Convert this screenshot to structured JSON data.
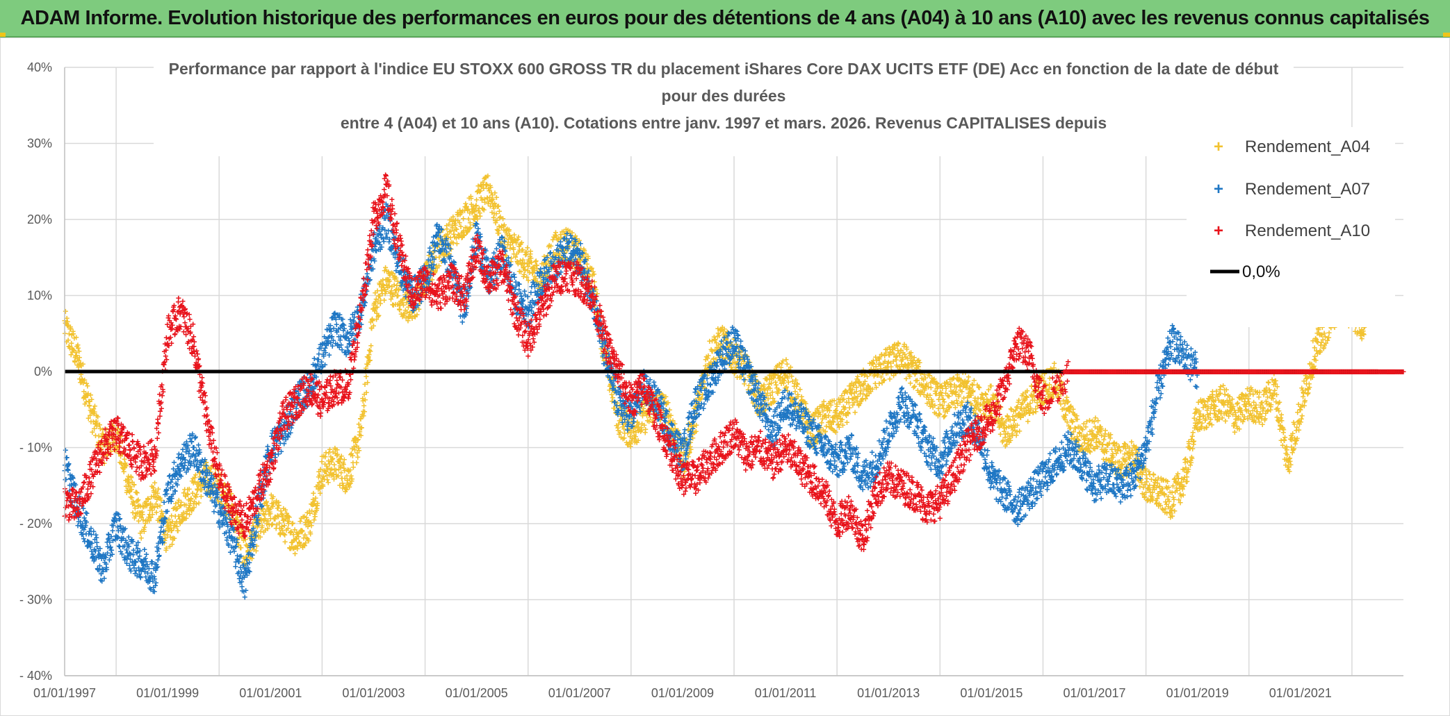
{
  "header": {
    "title": "ADAM Informe. Evolution historique des performances en euros pour des détentions de 4 ans (A04) à 10 ans (A10) avec les revenus connus capitalisés"
  },
  "colors": {
    "header_bg": "#7ecb7e",
    "A04": "#f2c230",
    "A07": "#1f77c4",
    "A10": "#e8141c",
    "zero_line": "#000000",
    "grid": "#d9d9d9"
  },
  "chart_data": {
    "type": "scatter",
    "title_lines": [
      "Performance par rapport à l'indice EU STOXX 600 GROSS TR  du placement iShares Core DAX UCITS ETF (DE) Acc en fonction de la date de début",
      "pour des durées",
      "entre 4 (A04) et 10 ans (A10). Cotations entre janv. 1997 et mars. 2026. Revenus CAPITALISES depuis"
    ],
    "xlabel": "",
    "ylabel": "",
    "xlim": [
      1997.0,
      2023.0
    ],
    "ylim": [
      -40,
      40
    ],
    "x_ticks": [
      1997,
      1999,
      2001,
      2003,
      2005,
      2007,
      2009,
      2011,
      2013,
      2015,
      2017,
      2019,
      2021
    ],
    "x_tick_labels": [
      "01/01/1997",
      "01/01/1999",
      "01/01/2001",
      "01/01/2003",
      "01/01/2005",
      "01/01/2007",
      "01/01/2009",
      "01/01/2011",
      "01/01/2013",
      "01/01/2015",
      "01/01/2017",
      "01/01/2019",
      "01/01/2021"
    ],
    "y_ticks": [
      40,
      30,
      20,
      10,
      0,
      -10,
      -20,
      -30,
      -40
    ],
    "y_tick_labels": [
      "40%",
      "30%",
      "20%",
      "10%",
      "0%",
      "- 10%",
      "- 20%",
      "- 30%",
      "- 40%"
    ],
    "grid": true,
    "legend_position": "top-right",
    "legend": [
      {
        "label": "Rendement_A04",
        "marker": "plus",
        "color": "#f2c230"
      },
      {
        "label": "Rendement_A07",
        "marker": "plus",
        "color": "#1f77c4"
      },
      {
        "label": "Rendement_A10",
        "marker": "plus",
        "color": "#e8141c"
      },
      {
        "label": "0,0%",
        "marker": "line",
        "color": "#000000"
      }
    ],
    "reference_line": {
      "label": "0,0%",
      "y": 0
    },
    "series": [
      {
        "name": "Rendement_A04",
        "color": "#f2c230",
        "x": [
          1997.0,
          1997.25,
          1997.5,
          1997.75,
          1998.0,
          1998.25,
          1998.5,
          1998.75,
          1999.0,
          1999.25,
          1999.5,
          1999.75,
          2000.0,
          2000.25,
          2000.5,
          2000.75,
          2001.0,
          2001.25,
          2001.5,
          2001.75,
          2002.0,
          2002.25,
          2002.5,
          2002.75,
          2003.0,
          2003.25,
          2003.5,
          2003.75,
          2004.0,
          2004.25,
          2004.5,
          2004.75,
          2005.0,
          2005.25,
          2005.5,
          2005.75,
          2006.0,
          2006.25,
          2006.5,
          2006.75,
          2007.0,
          2007.25,
          2007.5,
          2007.75,
          2008.0,
          2008.25,
          2008.5,
          2008.75,
          2009.0,
          2009.25,
          2009.5,
          2009.75,
          2010.0,
          2010.25,
          2010.5,
          2010.75,
          2011.0,
          2011.25,
          2011.5,
          2011.75,
          2012.0,
          2012.25,
          2012.5,
          2012.75,
          2013.0,
          2013.25,
          2013.5,
          2013.75,
          2014.0,
          2014.25,
          2014.5,
          2014.75,
          2015.0,
          2015.25,
          2015.5,
          2015.75,
          2016.0,
          2016.25,
          2016.5,
          2016.75,
          2017.0,
          2017.25,
          2017.5,
          2017.75,
          2018.0,
          2018.25,
          2018.5,
          2018.75,
          2019.0,
          2019.25,
          2019.5,
          2019.75,
          2020.0,
          2020.25,
          2020.5,
          2020.75,
          2021.0,
          2021.25,
          2021.5,
          2021.75,
          2022.0,
          2022.25
        ],
        "y": [
          6,
          2,
          -5,
          -10,
          -8,
          -15,
          -20,
          -16,
          -22,
          -18,
          -16,
          -14,
          -15,
          -18,
          -24,
          -21,
          -18,
          -20,
          -22,
          -20,
          -13,
          -12,
          -14,
          -8,
          8,
          12,
          10,
          8,
          12,
          16,
          18,
          20,
          22,
          24,
          18,
          16,
          14,
          12,
          16,
          17,
          15,
          12,
          2,
          -6,
          -8,
          -6,
          -4,
          -6,
          -12,
          -6,
          2,
          4,
          2,
          0,
          -4,
          -2,
          0,
          -4,
          -8,
          -6,
          -6,
          -4,
          -2,
          0,
          1,
          2,
          0,
          -2,
          -4,
          -3,
          -2,
          -4,
          -4,
          -8,
          -6,
          -4,
          -2,
          -1,
          -6,
          -9,
          -8,
          -10,
          -12,
          -11,
          -15,
          -16,
          -17,
          -14,
          -6,
          -5,
          -4,
          -6,
          -4,
          -5,
          -2,
          -12,
          -5,
          2,
          6,
          9,
          8,
          6
        ]
      },
      {
        "name": "Rendement_A07",
        "color": "#1f77c4",
        "x": [
          1997.0,
          1997.25,
          1997.5,
          1997.75,
          1998.0,
          1998.25,
          1998.5,
          1998.75,
          1999.0,
          1999.25,
          1999.5,
          1999.75,
          2000.0,
          2000.25,
          2000.5,
          2000.75,
          2001.0,
          2001.25,
          2001.5,
          2001.75,
          2002.0,
          2002.25,
          2002.5,
          2002.75,
          2003.0,
          2003.25,
          2003.5,
          2003.75,
          2004.0,
          2004.25,
          2004.5,
          2004.75,
          2005.0,
          2005.25,
          2005.5,
          2005.75,
          2006.0,
          2006.25,
          2006.5,
          2006.75,
          2007.0,
          2007.25,
          2007.5,
          2007.75,
          2008.0,
          2008.25,
          2008.5,
          2008.75,
          2009.0,
          2009.25,
          2009.5,
          2009.75,
          2010.0,
          2010.25,
          2010.5,
          2010.75,
          2011.0,
          2011.25,
          2011.5,
          2011.75,
          2012.0,
          2012.25,
          2012.5,
          2012.75,
          2013.0,
          2013.25,
          2013.5,
          2013.75,
          2014.0,
          2014.25,
          2014.5,
          2014.75,
          2015.0,
          2015.25,
          2015.5,
          2015.75,
          2016.0,
          2016.25,
          2016.5,
          2016.75,
          2017.0,
          2017.25,
          2017.5,
          2017.75,
          2018.0,
          2018.25,
          2018.5,
          2018.75,
          2019.0
        ],
        "y": [
          -12,
          -18,
          -22,
          -26,
          -20,
          -24,
          -25,
          -27,
          -16,
          -12,
          -10,
          -14,
          -18,
          -22,
          -28,
          -18,
          -10,
          -8,
          -4,
          -2,
          2,
          6,
          4,
          8,
          16,
          20,
          14,
          10,
          12,
          18,
          14,
          8,
          18,
          12,
          16,
          10,
          8,
          12,
          14,
          16,
          15,
          10,
          2,
          -4,
          -6,
          -2,
          -4,
          -8,
          -11,
          -4,
          -2,
          2,
          4,
          0,
          -4,
          -8,
          -4,
          -6,
          -8,
          -10,
          -12,
          -10,
          -14,
          -12,
          -8,
          -4,
          -6,
          -10,
          -12,
          -8,
          -6,
          -8,
          -14,
          -16,
          -18,
          -16,
          -14,
          -12,
          -10,
          -12,
          -15,
          -14,
          -15,
          -14,
          -10,
          -2,
          4,
          2,
          0
        ]
      },
      {
        "name": "Rendement_A10",
        "color": "#e8141c",
        "x": [
          1997.0,
          1997.25,
          1997.5,
          1997.75,
          1998.0,
          1998.25,
          1998.5,
          1998.75,
          1999.0,
          1999.25,
          1999.5,
          1999.75,
          2000.0,
          2000.25,
          2000.5,
          2000.75,
          2001.0,
          2001.25,
          2001.5,
          2001.75,
          2002.0,
          2002.25,
          2002.5,
          2002.75,
          2003.0,
          2003.25,
          2003.5,
          2003.75,
          2004.0,
          2004.25,
          2004.5,
          2004.75,
          2005.0,
          2005.25,
          2005.5,
          2005.75,
          2006.0,
          2006.25,
          2006.5,
          2006.75,
          2007.0,
          2007.25,
          2007.5,
          2007.75,
          2008.0,
          2008.25,
          2008.5,
          2008.75,
          2009.0,
          2009.25,
          2009.5,
          2009.75,
          2010.0,
          2010.25,
          2010.5,
          2010.75,
          2011.0,
          2011.25,
          2011.5,
          2011.75,
          2012.0,
          2012.25,
          2012.5,
          2012.75,
          2013.0,
          2013.25,
          2013.5,
          2013.75,
          2014.0,
          2014.25,
          2014.5,
          2014.75,
          2015.0,
          2015.25,
          2015.5,
          2015.75,
          2016.0,
          2016.5,
          2017.0,
          2017.5,
          2018.0,
          2018.5,
          2019.0,
          2019.5,
          2020.0,
          2020.5,
          2021.0,
          2021.5,
          2022.0,
          2022.5
        ],
        "y": [
          -17,
          -18,
          -14,
          -10,
          -8,
          -10,
          -12,
          -11,
          5,
          8,
          4,
          -6,
          -14,
          -18,
          -20,
          -16,
          -12,
          -6,
          -4,
          -2,
          -4,
          -2,
          -2,
          8,
          20,
          24,
          16,
          10,
          12,
          10,
          12,
          10,
          16,
          12,
          14,
          8,
          4,
          8,
          12,
          13,
          12,
          10,
          4,
          0,
          -4,
          -2,
          -6,
          -10,
          -14,
          -14,
          -12,
          -10,
          -8,
          -11,
          -10,
          -12,
          -10,
          -12,
          -14,
          -16,
          -20,
          -18,
          -22,
          -16,
          -14,
          -15,
          -16,
          -18,
          -17,
          -14,
          -10,
          -8,
          -6,
          -2,
          4,
          2,
          -4,
          0,
          0,
          0,
          0,
          0,
          0,
          0,
          0,
          0,
          0,
          0,
          0,
          0
        ]
      }
    ]
  }
}
